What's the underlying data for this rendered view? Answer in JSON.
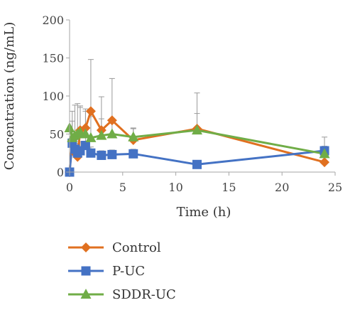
{
  "chart_data": {
    "type": "line",
    "title": "",
    "xlabel": "Time (h)",
    "ylabel": "Concentration (ng/mL)",
    "xlim": [
      0,
      25
    ],
    "ylim": [
      0,
      200
    ],
    "xticks": [
      0,
      5,
      10,
      15,
      20,
      25
    ],
    "yticks": [
      0,
      50,
      100,
      150,
      200
    ],
    "grid": false,
    "legend_position": "bottom",
    "series": [
      {
        "name": "Control",
        "color": "#E07020",
        "marker": "diamond",
        "x": [
          0,
          0.25,
          0.5,
          0.75,
          1,
          1.5,
          2,
          3,
          4,
          6,
          12,
          24
        ],
        "y": [
          0,
          42,
          25,
          20,
          55,
          58,
          80,
          55,
          68,
          42,
          57,
          13
        ],
        "err": [
          0,
          25,
          22,
          18,
          30,
          25,
          68,
          44,
          55,
          15,
          47,
          10
        ]
      },
      {
        "name": "P-UC",
        "color": "#4472C4",
        "marker": "square",
        "x": [
          0,
          0.25,
          0.5,
          0.75,
          1,
          1.5,
          2,
          3,
          4,
          6,
          12,
          24
        ],
        "y": [
          0,
          38,
          30,
          25,
          28,
          35,
          25,
          22,
          23,
          24,
          10,
          28
        ],
        "err": [
          0,
          15,
          12,
          10,
          12,
          10,
          8,
          6,
          6,
          6,
          2,
          18
        ]
      },
      {
        "name": "SDDR-UC",
        "color": "#70AD47",
        "marker": "triangle",
        "x": [
          0,
          0.25,
          0.5,
          0.75,
          1,
          1.5,
          2,
          3,
          4,
          6,
          12,
          24
        ],
        "y": [
          58,
          45,
          48,
          50,
          52,
          50,
          45,
          48,
          50,
          46,
          55,
          24
        ],
        "err": [
          0,
          35,
          40,
          40,
          35,
          30,
          28,
          22,
          15,
          12,
          22,
          10
        ]
      }
    ]
  }
}
